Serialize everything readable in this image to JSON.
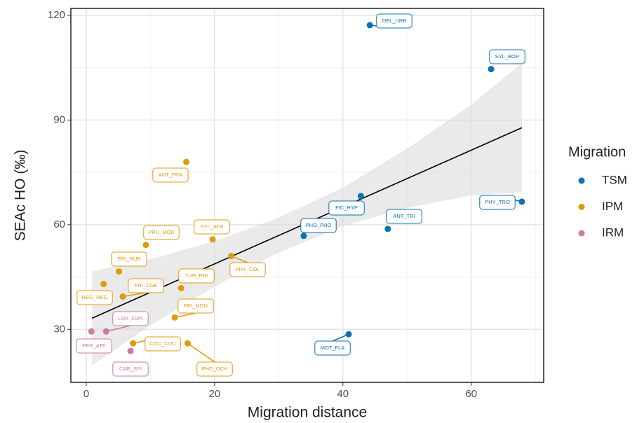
{
  "chart_data": {
    "type": "scatter",
    "x_label": "Migration distance",
    "y_label": "SEAc HO (‰)",
    "legend_title": "Migration",
    "xlim": [
      -2.4,
      71.3
    ],
    "ylim": [
      14.8,
      122
    ],
    "xticks": [
      0,
      20,
      40,
      60
    ],
    "yticks": [
      30,
      60,
      90,
      120
    ],
    "grid": true,
    "legend_position": "right",
    "series": [
      {
        "name": "TSM",
        "color": "#0a72b0",
        "labels": [
          "DEL_URB",
          "SYL_BOR",
          "PHY_TRO",
          "FIC_HYP",
          "ANT_TRI",
          "PHO_PHO",
          "MOT_FLA"
        ],
        "x": [
          44.2,
          63.1,
          67.9,
          42.8,
          47.0,
          33.9,
          40.9
        ],
        "values": [
          117.2,
          104.6,
          66.6,
          68.2,
          58.8,
          56.8,
          28.6
        ]
      },
      {
        "name": "IPM",
        "color": "#e09a0c",
        "labels": [
          "ANT_PRA",
          "PRU_MOD",
          "SYL_ATR",
          "PHY_COL",
          "ERI_RUB",
          "REG_REG",
          "FRI_COE",
          "TUR_PHI",
          "FRI_MON",
          "COC_COC",
          "PHO_OCH"
        ],
        "x": [
          15.6,
          9.3,
          19.7,
          22.6,
          5.1,
          2.7,
          5.7,
          14.8,
          13.8,
          7.3,
          15.8
        ],
        "values": [
          78.0,
          54.2,
          55.8,
          51.0,
          46.6,
          43.0,
          39.4,
          41.8,
          33.4,
          26.0,
          26.0
        ]
      },
      {
        "name": "IRM",
        "color": "#cc79a7",
        "labels": [
          "LOX_CUR",
          "PER_ATE",
          "CAR_SPI"
        ],
        "x": [
          3.1,
          0.8,
          6.9
        ],
        "values": [
          29.4,
          29.4,
          23.8
        ]
      }
    ],
    "fit": {
      "x": [
        0.9,
        67.9
      ],
      "values": [
        33.2,
        87.8
      ]
    },
    "band": {
      "x": [
        0.9,
        10,
        20,
        30,
        40,
        50,
        60,
        67.9
      ],
      "upper": [
        46.7,
        50.1,
        55.3,
        62,
        70.6,
        81.8,
        94.4,
        106.3
      ],
      "lower": [
        19.7,
        31.1,
        42.3,
        52,
        59.6,
        64.8,
        68.4,
        69.3
      ]
    }
  }
}
